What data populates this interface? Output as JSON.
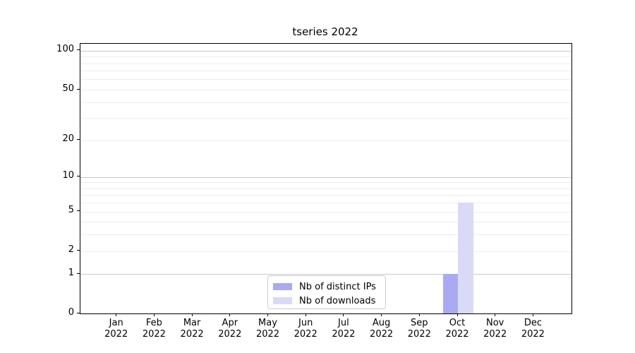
{
  "figure": {
    "title": "tseries 2022",
    "background": "#ffffff"
  },
  "legend": {
    "items": [
      {
        "label": "Nb of distinct IPs",
        "color": "#aaaaf2"
      },
      {
        "label": "Nb of downloads",
        "color": "#d9d9f8"
      }
    ]
  },
  "chart_data": {
    "type": "bar",
    "title": "tseries 2022",
    "categories": [
      "Jan 2022",
      "Feb 2022",
      "Mar 2022",
      "Apr 2022",
      "May 2022",
      "Jun 2022",
      "Jul 2022",
      "Aug 2022",
      "Sep 2022",
      "Oct 2022",
      "Nov 2022",
      "Dec 2022"
    ],
    "series": [
      {
        "name": "Nb of distinct IPs",
        "color": "#aaaaf2",
        "values": [
          0,
          0,
          0,
          0,
          0,
          0,
          0,
          0,
          0,
          1,
          0,
          0
        ]
      },
      {
        "name": "Nb of downloads",
        "color": "#d9d9f8",
        "values": [
          0,
          0,
          0,
          0,
          0,
          0,
          0,
          0,
          0,
          6,
          0,
          0
        ]
      }
    ],
    "xlabel": "",
    "ylabel": "",
    "yscale": "log1p",
    "ylim": [
      0,
      113
    ],
    "ytick_values": [
      0,
      1,
      2,
      5,
      10,
      20,
      50,
      100
    ],
    "ytick_labels": [
      "0",
      "1",
      "2",
      "5",
      "10",
      "20",
      "50",
      "100"
    ],
    "major_gridlines": [
      1,
      10,
      100
    ],
    "minor_gridlines": [
      2,
      3,
      4,
      5,
      6,
      7,
      8,
      9,
      20,
      30,
      40,
      50,
      60,
      70,
      80,
      90
    ],
    "grid": "horizontal",
    "legend_position": "lower center"
  },
  "colors": {
    "grid_minor": "#ededed",
    "grid_major": "#c9c9c9",
    "spine": "#000000",
    "text": "#000000"
  }
}
